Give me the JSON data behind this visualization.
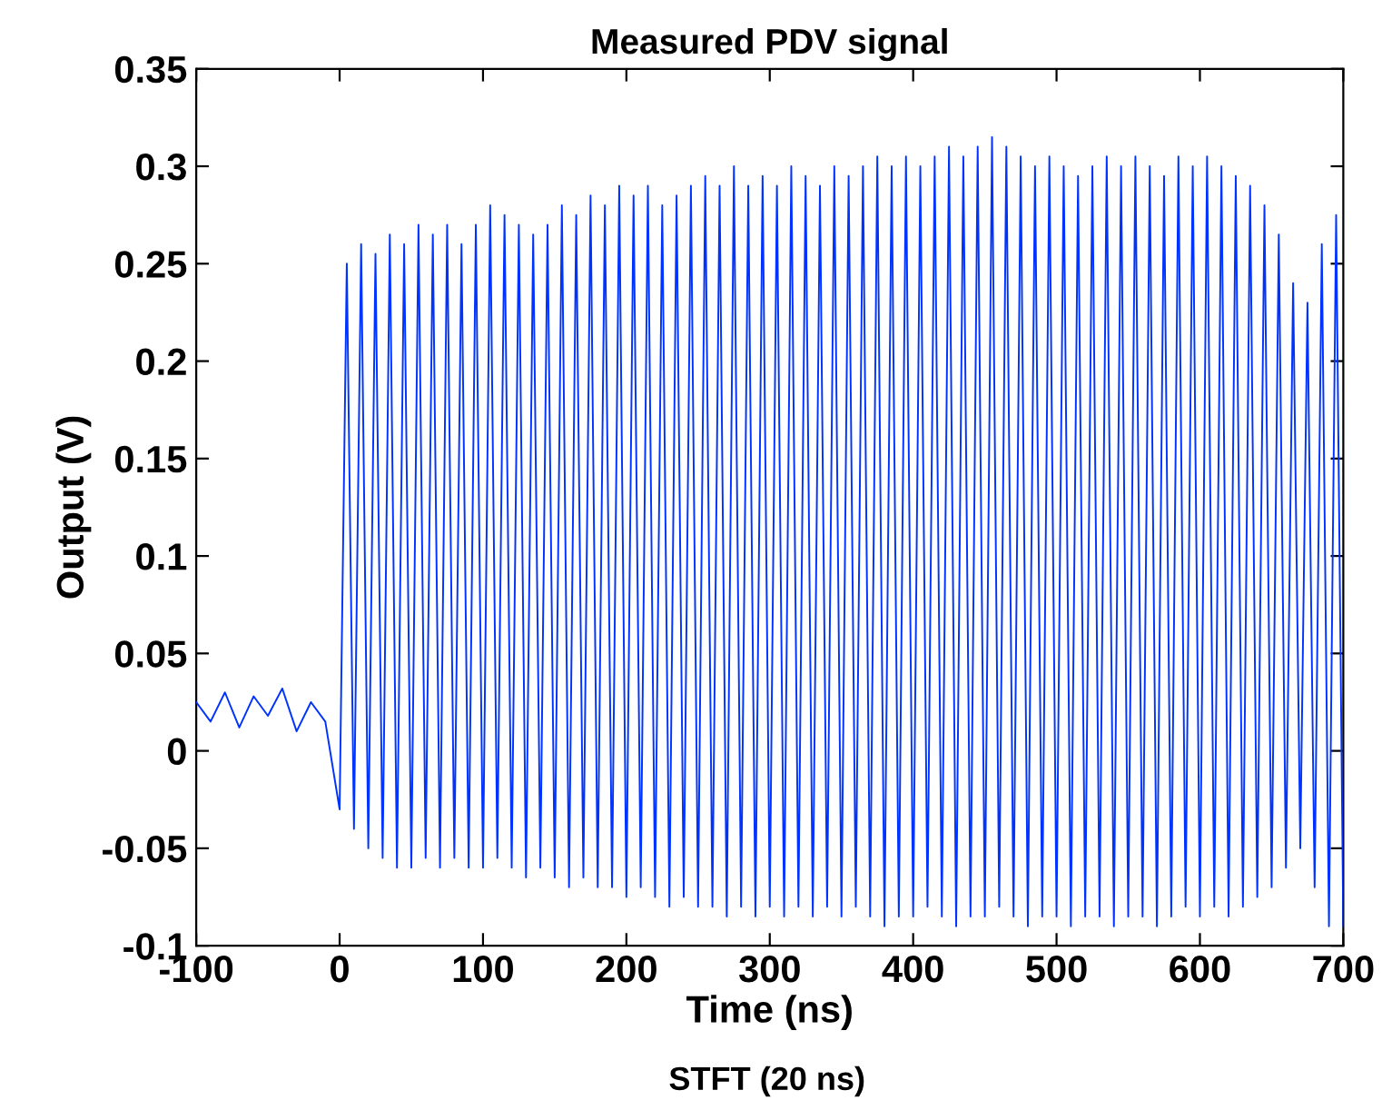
{
  "chart_data": {
    "type": "line",
    "title": "Measured PDV signal",
    "xlabel": "Time (ns)",
    "ylabel": "Output (V)",
    "annotations": [
      "STFT (20 ns)"
    ],
    "xlim": [
      -100,
      700
    ],
    "xticks": [
      -100,
      0,
      100,
      200,
      300,
      400,
      500,
      600,
      700
    ],
    "ylim": [
      -0.1,
      0.35
    ],
    "yticks": [
      -0.1,
      -0.05,
      0,
      0.05,
      0.1,
      0.15,
      0.2,
      0.25,
      0.3,
      0.35
    ],
    "grid": false,
    "legend": false,
    "series": [
      {
        "color": "#0033ff",
        "x": [
          -100,
          -90,
          -80,
          -70,
          -60,
          -50,
          -40,
          -30,
          -20,
          -10,
          0,
          5,
          10,
          15,
          20,
          25,
          30,
          35,
          40,
          45,
          50,
          55,
          60,
          65,
          70,
          75,
          80,
          85,
          90,
          95,
          100,
          105,
          110,
          115,
          120,
          125,
          130,
          135,
          140,
          145,
          150,
          155,
          160,
          165,
          170,
          175,
          180,
          185,
          190,
          195,
          200,
          205,
          210,
          215,
          220,
          225,
          230,
          235,
          240,
          245,
          250,
          255,
          260,
          265,
          270,
          275,
          280,
          285,
          290,
          295,
          300,
          305,
          310,
          315,
          320,
          325,
          330,
          335,
          340,
          345,
          350,
          355,
          360,
          365,
          370,
          375,
          380,
          385,
          390,
          395,
          400,
          405,
          410,
          415,
          420,
          425,
          430,
          435,
          440,
          445,
          450,
          455,
          460,
          465,
          470,
          475,
          480,
          485,
          490,
          495,
          500,
          505,
          510,
          515,
          520,
          525,
          530,
          535,
          540,
          545,
          550,
          555,
          560,
          565,
          570,
          575,
          580,
          585,
          590,
          595,
          600,
          605,
          610,
          615,
          620,
          625,
          630,
          635,
          640,
          645,
          650,
          655,
          660,
          665,
          670,
          675,
          680,
          685,
          690,
          695,
          700
        ],
        "values": [
          0.025,
          0.015,
          0.03,
          0.012,
          0.028,
          0.018,
          0.032,
          0.01,
          0.025,
          0.015,
          -0.03,
          0.25,
          -0.04,
          0.26,
          -0.05,
          0.255,
          -0.055,
          0.265,
          -0.06,
          0.26,
          -0.06,
          0.27,
          -0.055,
          0.265,
          -0.06,
          0.27,
          -0.055,
          0.26,
          -0.06,
          0.27,
          -0.06,
          0.28,
          -0.055,
          0.275,
          -0.06,
          0.27,
          -0.065,
          0.265,
          -0.06,
          0.27,
          -0.065,
          0.28,
          -0.07,
          0.275,
          -0.065,
          0.285,
          -0.07,
          0.28,
          -0.07,
          0.29,
          -0.075,
          0.285,
          -0.07,
          0.29,
          -0.075,
          0.28,
          -0.08,
          0.285,
          -0.075,
          0.29,
          -0.08,
          0.295,
          -0.08,
          0.29,
          -0.085,
          0.3,
          -0.08,
          0.29,
          -0.085,
          0.295,
          -0.08,
          0.29,
          -0.085,
          0.3,
          -0.08,
          0.295,
          -0.085,
          0.29,
          -0.08,
          0.3,
          -0.085,
          0.295,
          -0.08,
          0.3,
          -0.085,
          0.305,
          -0.09,
          0.3,
          -0.085,
          0.305,
          -0.085,
          0.3,
          -0.08,
          0.305,
          -0.085,
          0.31,
          -0.09,
          0.305,
          -0.085,
          0.31,
          -0.085,
          0.315,
          -0.08,
          0.31,
          -0.085,
          0.305,
          -0.09,
          0.3,
          -0.085,
          0.305,
          -0.085,
          0.3,
          -0.09,
          0.295,
          -0.085,
          0.3,
          -0.085,
          0.305,
          -0.09,
          0.3,
          -0.085,
          0.305,
          -0.085,
          0.3,
          -0.09,
          0.295,
          -0.085,
          0.305,
          -0.08,
          0.3,
          -0.085,
          0.305,
          -0.08,
          0.3,
          -0.085,
          0.295,
          -0.08,
          0.29,
          -0.075,
          0.28,
          -0.07,
          0.265,
          -0.06,
          0.24,
          -0.05,
          0.23,
          -0.07,
          0.26,
          -0.09,
          0.275,
          -0.09
        ]
      }
    ]
  }
}
